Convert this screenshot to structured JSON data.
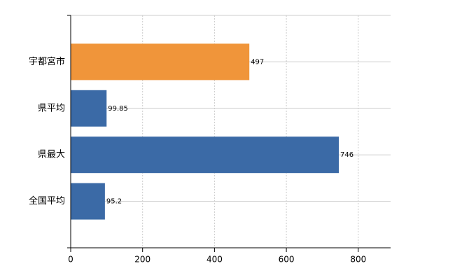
{
  "chart_data": {
    "type": "barh",
    "categories": [
      "宇都宮市",
      "県平均",
      "県最大",
      "全国平均"
    ],
    "values": [
      497,
      99.85,
      746,
      95.2
    ],
    "colors": [
      "#f0953a",
      "#3b6aa6",
      "#3b6aa6",
      "#3b6aa6"
    ],
    "xlim": [
      0,
      890
    ],
    "xticks": [
      0,
      200,
      400,
      600,
      800
    ],
    "grid": true
  }
}
